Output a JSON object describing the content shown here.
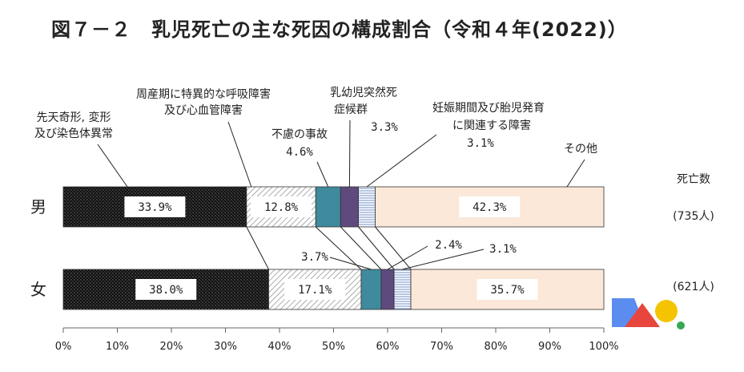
{
  "title": "図７－２　乳児死亡の主な死因の構成割合（令和４年(2022)）",
  "chart_data": {
    "type": "bar",
    "stacked": true,
    "orientation": "horizontal",
    "title": "図７－２　乳児死亡の主な死因の構成割合（令和４年(2022)）",
    "categories": [
      "男",
      "女"
    ],
    "counts_header": "死亡数",
    "counts": [
      "(735人)",
      "(621人)"
    ],
    "xlim": [
      0,
      100
    ],
    "x_ticks": [
      "0%",
      "10%",
      "20%",
      "30%",
      "40%",
      "50%",
      "60%",
      "70%",
      "80%",
      "90%",
      "100%"
    ],
    "series": [
      {
        "name": "先天奇形, 変形及び染色体異常",
        "label_lines": [
          "先天奇形, 変形",
          "及び染色体異常"
        ],
        "values": [
          33.9,
          38.0
        ],
        "value_labels": [
          "33.9%",
          "38.0%"
        ],
        "pattern": "dots-dark",
        "color": "#111111"
      },
      {
        "name": "周産期に特異的な呼吸障害及び心血管障害",
        "label_lines": [
          "周産期に特異的な呼吸障害",
          "及び心血管障害"
        ],
        "values": [
          12.8,
          17.1
        ],
        "value_labels": [
          "12.8%",
          "17.1%"
        ],
        "pattern": "diagonal",
        "color": "#9a9a9a"
      },
      {
        "name": "不慮の事故",
        "label_lines": [
          "不慮の事故"
        ],
        "values": [
          4.6,
          3.7
        ],
        "value_labels": [
          "4.6%",
          "3.7%"
        ],
        "color": "#3f8a9c"
      },
      {
        "name": "乳幼児突然死症候群",
        "label_lines": [
          "乳幼児突然死",
          "症候群"
        ],
        "values": [
          3.3,
          2.4
        ],
        "value_labels": [
          "3.3%",
          "2.4%"
        ],
        "color": "#5e4a7c"
      },
      {
        "name": "妊娠期間及び胎児発育に関連する障害",
        "label_lines": [
          "妊娠期間及び胎児発育",
          "に関連する障害"
        ],
        "values": [
          3.1,
          3.1
        ],
        "value_labels": [
          "3.1%",
          "3.1%"
        ],
        "pattern": "horizontal-lines",
        "color": "#7f9fd0"
      },
      {
        "name": "その他",
        "label_lines": [
          "その他"
        ],
        "values": [
          42.3,
          35.7
        ],
        "value_labels": [
          "42.3%",
          "35.7%"
        ],
        "color": "#fbe8d8"
      }
    ]
  }
}
